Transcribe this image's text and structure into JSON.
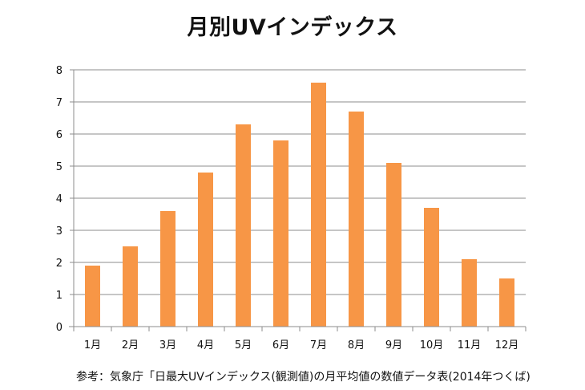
{
  "chart_data": {
    "type": "bar",
    "title": "月別UVインデックス",
    "categories": [
      "1月",
      "2月",
      "3月",
      "4月",
      "5月",
      "6月",
      "7月",
      "8月",
      "9月",
      "10月",
      "11月",
      "12月"
    ],
    "values": [
      1.9,
      2.5,
      3.6,
      4.8,
      6.3,
      5.8,
      7.6,
      6.7,
      5.1,
      3.7,
      2.1,
      1.5
    ],
    "ylim": [
      0,
      8
    ],
    "yticks": [
      "0",
      "1",
      "2",
      "3",
      "4",
      "5",
      "6",
      "7",
      "8"
    ],
    "grid": true,
    "xlabel": "",
    "ylabel": "",
    "bar_color": "#F79646"
  },
  "source_note": "参考：気象庁「日最大UVインデックス(観測値)の月平均値の数値データ表(2014年つくば)"
}
